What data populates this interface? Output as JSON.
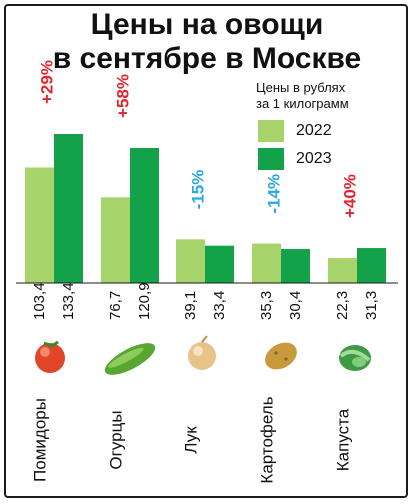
{
  "title_line1": "Цены на овощи",
  "title_line2": "в сентябре в Москве",
  "unit_line1": "Цены в рублях",
  "unit_line2": "за 1 килограмм",
  "colors": {
    "y2022": "#a6d36a",
    "y2023": "#13a14a",
    "up": "#e3262e",
    "down": "#27a9df"
  },
  "chart_data": {
    "type": "bar",
    "categories": [
      "Помидоры",
      "Огурцы",
      "Лук",
      "Картофель",
      "Капуста"
    ],
    "series": [
      {
        "name": "2022",
        "values": [
          103.4,
          76.7,
          39.1,
          35.3,
          22.3
        ]
      },
      {
        "name": "2023",
        "values": [
          133.4,
          120.9,
          33.4,
          30.4,
          31.3
        ]
      }
    ],
    "value_labels": {
      "2022": [
        "103,4",
        "76,7",
        "39,1",
        "35,3",
        "22,3"
      ],
      "2023": [
        "133,4",
        "120,9",
        "33,4",
        "30,4",
        "31,3"
      ]
    },
    "changes": [
      "+29%",
      "+58%",
      "-15%",
      "-14%",
      "+40%"
    ],
    "change_directions": [
      "up",
      "up",
      "down",
      "down",
      "up"
    ],
    "legend_position": "top-right",
    "icons": [
      "tomato-icon",
      "cucumber-icon",
      "onion-icon",
      "potato-icon",
      "cabbage-icon"
    ]
  }
}
